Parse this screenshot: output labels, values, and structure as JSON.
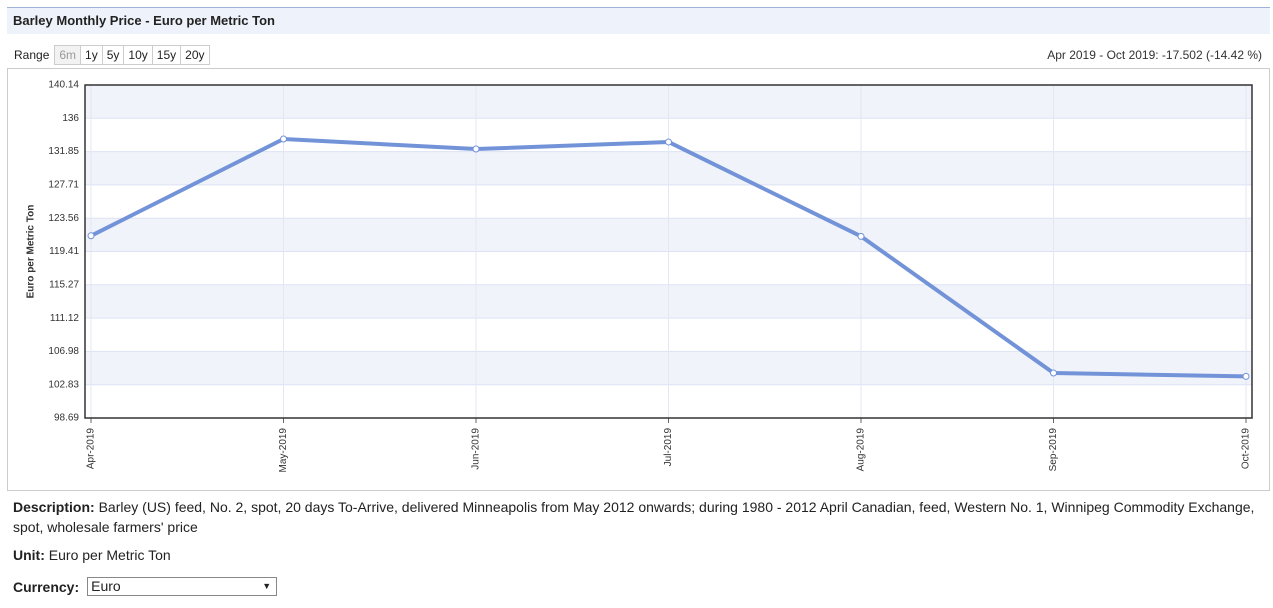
{
  "header": {
    "title": "Barley Monthly Price - Euro per Metric Ton"
  },
  "range": {
    "label": "Range",
    "options": [
      "6m",
      "1y",
      "5y",
      "10y",
      "15y",
      "20y"
    ]
  },
  "chart_data": {
    "type": "line",
    "annotation": "Apr 2019 - Oct 2019: -17.502 (-14.42 %)",
    "y_label": "Euro per Metric Ton",
    "categories": [
      "Apr-2019",
      "May-2019",
      "Jun-2019",
      "Jul-2019",
      "Aug-2019",
      "Sep-2019",
      "Oct-2019"
    ],
    "values": [
      121.37,
      133.42,
      132.17,
      133.05,
      121.3,
      104.29,
      103.87
    ],
    "color": "#7393d8",
    "ylim": [
      98.69,
      140.14
    ],
    "yticks": [
      98.69,
      102.83,
      106.98,
      111.12,
      115.27,
      119.41,
      123.56,
      127.71,
      131.85,
      136,
      140.14
    ],
    "grid": true
  },
  "description": {
    "label": "Description:",
    "text": "Barley (US) feed, No. 2, spot, 20 days To-Arrive, delivered Minneapolis from May 2012 onwards; during 1980 - 2012 April Canadian, feed, Western No. 1, Winnipeg Commodity Exchange, spot, wholesale farmers' price"
  },
  "unit": {
    "label": "Unit:",
    "text": "Euro per Metric Ton"
  },
  "currency": {
    "label": "Currency:",
    "selected": "Euro"
  }
}
